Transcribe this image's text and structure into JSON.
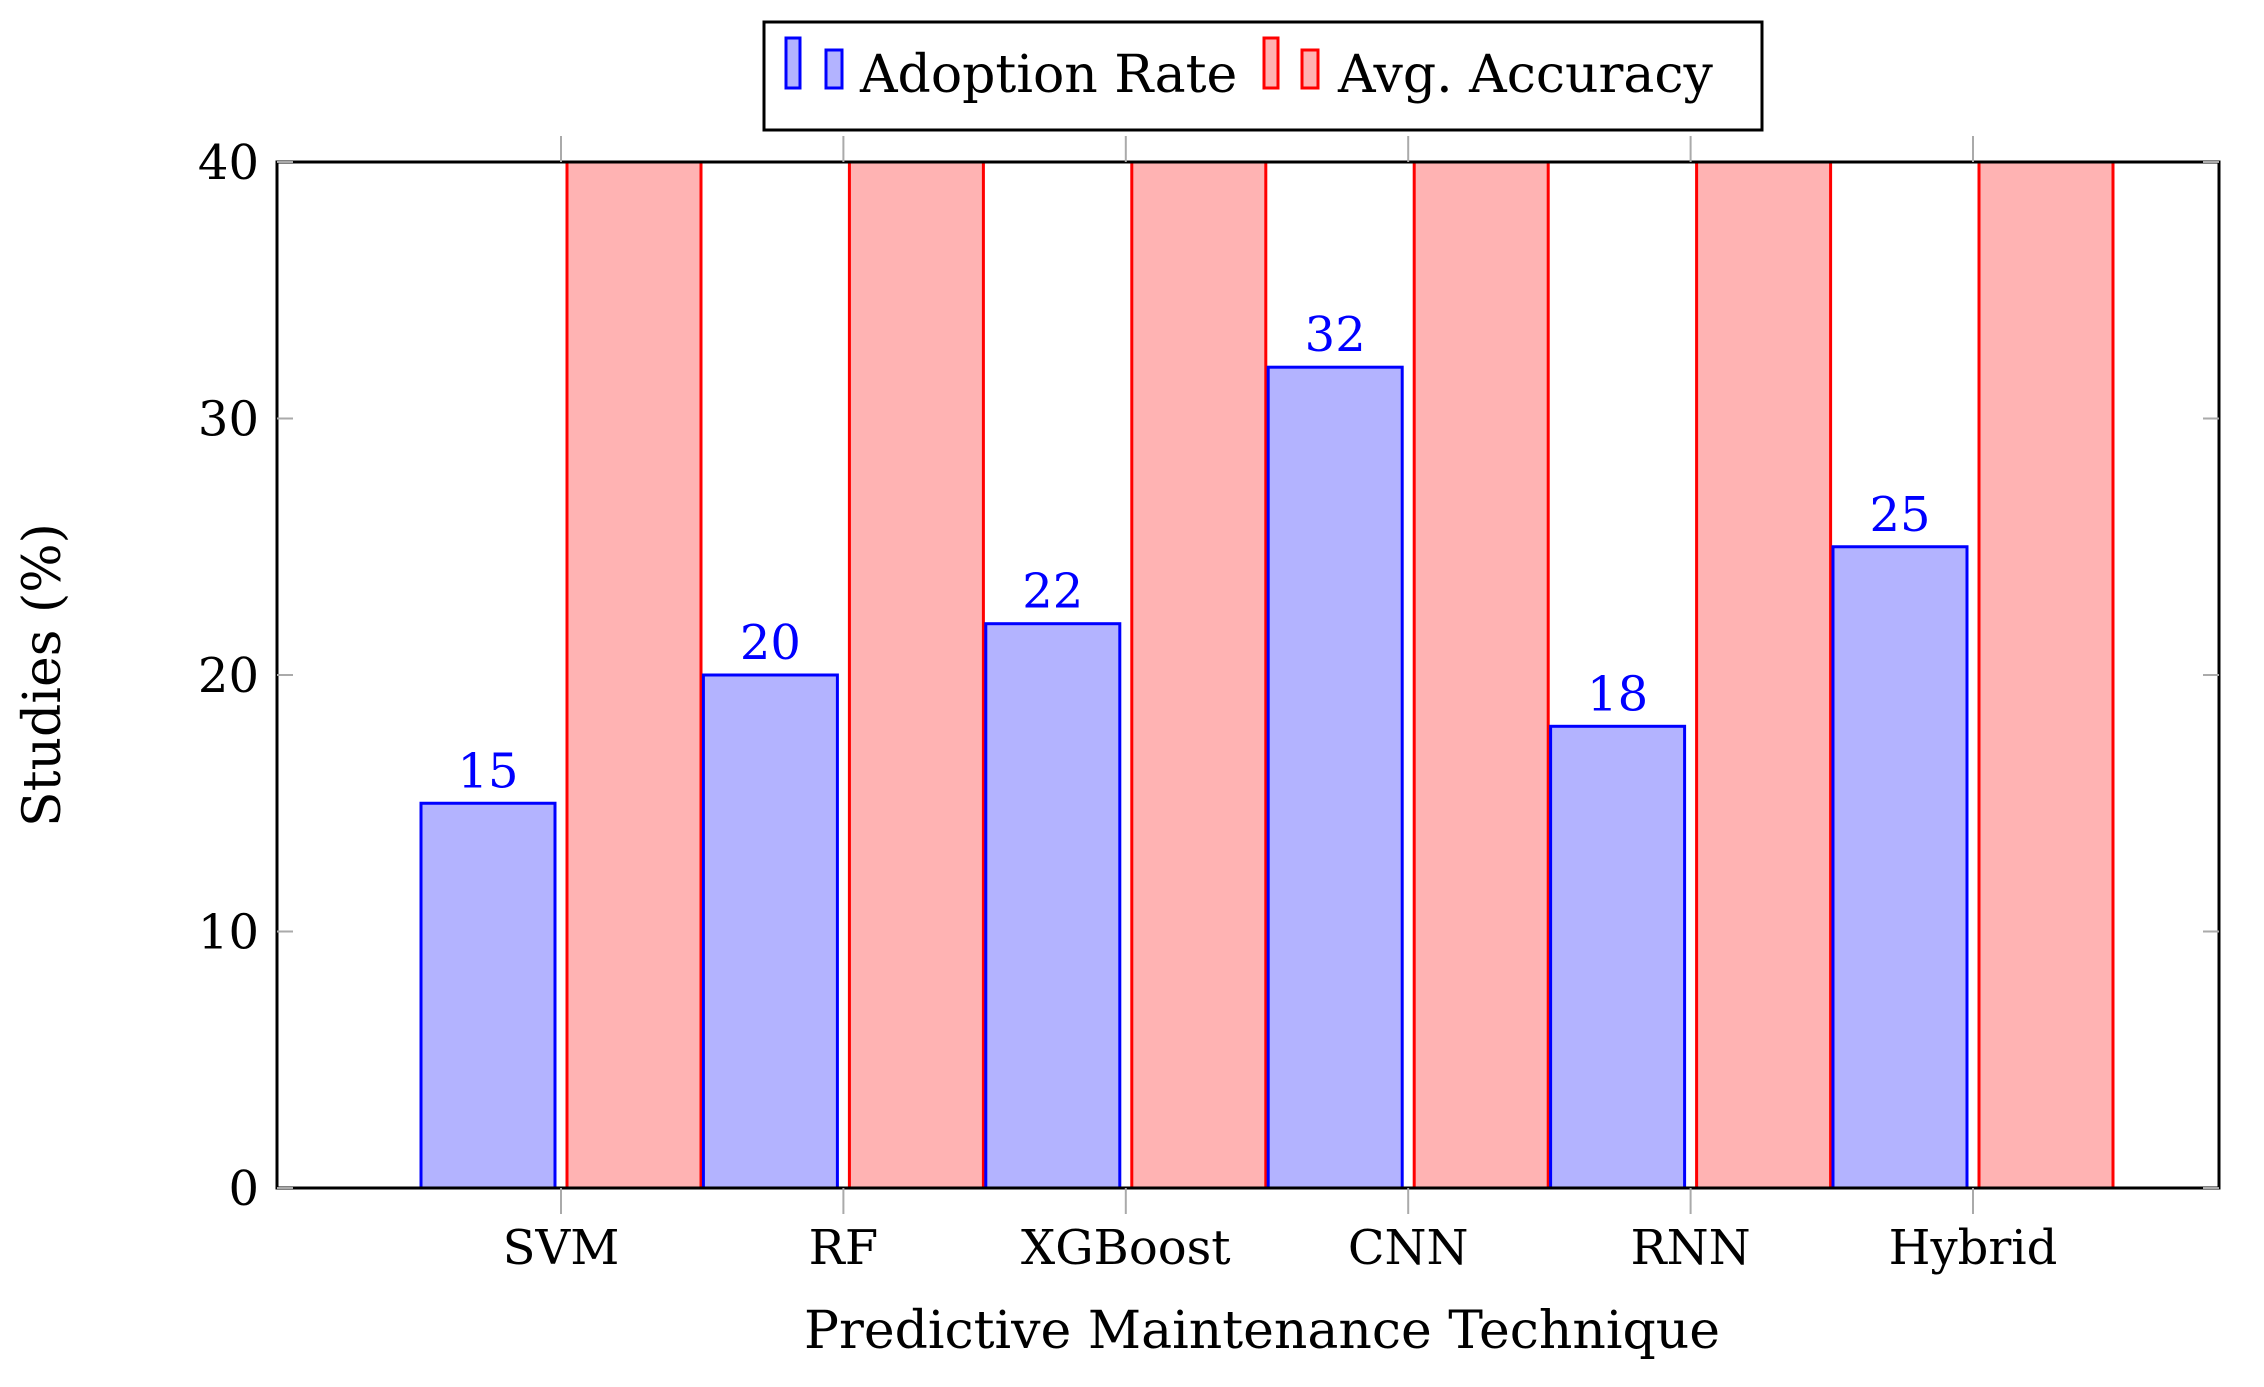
{
  "chart_data": {
    "type": "bar",
    "title": "",
    "categories": [
      "SVM",
      "RF",
      "XGBoost",
      "CNN",
      "RNN",
      "Hybrid"
    ],
    "series": [
      {
        "name": "Adoption Rate",
        "values": [
          15,
          20,
          22,
          32,
          18,
          25
        ],
        "fill": "#b3b3ff",
        "stroke": "#0000ff",
        "labels_shown": true
      },
      {
        "name": "Avg. Accuracy",
        "values": [
          40,
          40,
          40,
          40,
          40,
          40
        ],
        "fill": "#ffb3b3",
        "stroke": "#ff0000",
        "labels_shown": false
      }
    ],
    "xlabel": "Predictive Maintenance Technique",
    "ylabel": "Studies (%)",
    "ylim": [
      0,
      40
    ],
    "yticks": [
      0,
      10,
      20,
      30,
      40
    ],
    "legend_position": "top-center",
    "grid": false
  }
}
